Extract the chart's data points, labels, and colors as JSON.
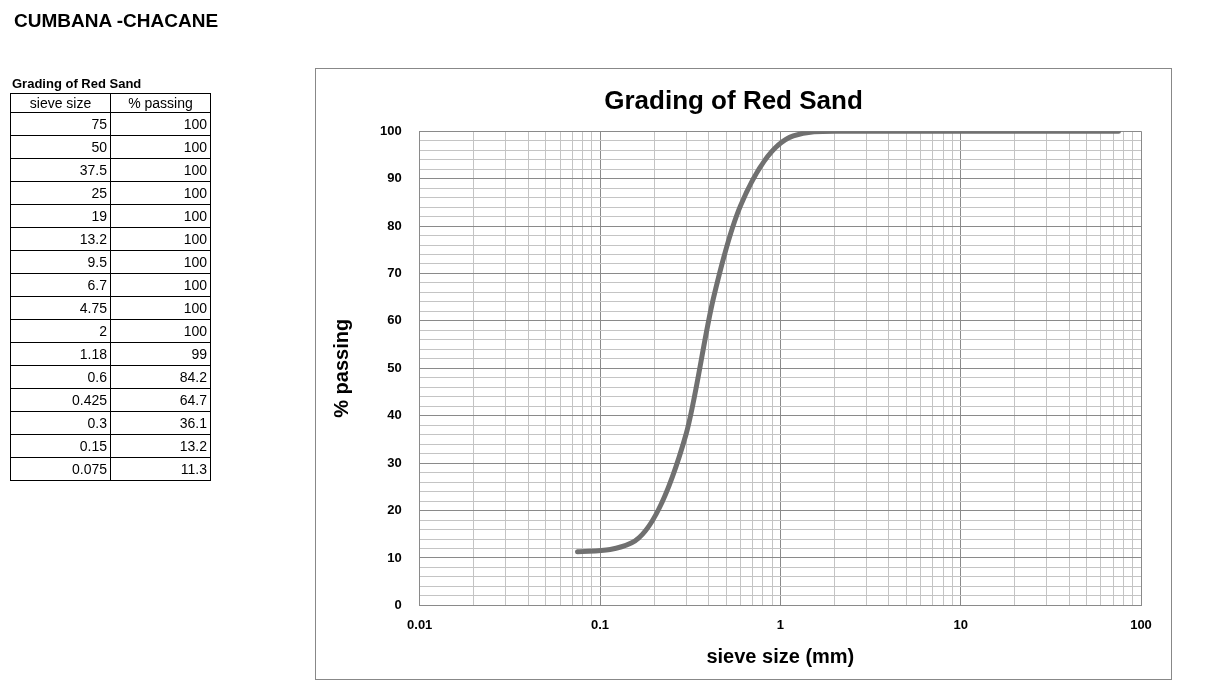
{
  "chart_data": {
    "type": "line",
    "title": "Grading of Red Sand",
    "xlabel": "sieve size (mm)",
    "ylabel": "% passing",
    "annotations": [
      "CUMBANA -CHACANE",
      "Grading of Red Sand",
      "sieve size",
      "% passing",
      "75",
      "100",
      "50",
      "100",
      "37.5",
      "100",
      "25",
      "100",
      "19",
      "100",
      "13.2",
      "100",
      "9.5",
      "100",
      "6.7",
      "100",
      "4.75",
      "100",
      "2",
      "100",
      "1.18",
      "99",
      "0.6",
      "84.2",
      "0.425",
      "64.7",
      "0.3",
      "36.1",
      "0.15",
      "13.2",
      "0.075",
      "11.3"
    ],
    "x": [
      75,
      50,
      37.5,
      25,
      19,
      13.2,
      9.5,
      6.7,
      4.75,
      2,
      1.18,
      0.6,
      0.425,
      0.3,
      0.15,
      0.075
    ],
    "series": [
      {
        "color": "#707070",
        "values": [
          100,
          100,
          100,
          100,
          100,
          100,
          100,
          100,
          100,
          100,
          99,
          84.2,
          64.7,
          36.1,
          13.2,
          11.3
        ]
      }
    ],
    "log": "x",
    "grid": true,
    "legend": false,
    "marker": "none",
    "line_style": "solid",
    "xlim": [
      0.01,
      100
    ],
    "xticks": [
      0.01,
      {
        "value": 0.02,
        "label": null
      },
      {
        "value": 0.03,
        "label": null
      },
      {
        "value": 0.04,
        "label": null
      },
      {
        "value": 0.05,
        "label": null
      },
      {
        "value": 0.06,
        "label": null
      },
      {
        "value": 0.07,
        "label": null
      },
      {
        "value": 0.08,
        "label": null
      },
      {
        "value": 0.09,
        "label": null
      },
      0.1,
      {
        "value": 0.2,
        "label": null
      },
      {
        "value": 0.3,
        "label": null
      },
      {
        "value": 0.4,
        "label": null
      },
      {
        "value": 0.5,
        "label": null
      },
      {
        "value": 0.6,
        "label": null
      },
      {
        "value": 0.7,
        "label": null
      },
      {
        "value": 0.8,
        "label": null
      },
      {
        "value": 0.9,
        "label": null
      },
      1,
      {
        "value": 2,
        "label": null
      },
      {
        "value": 3,
        "label": null
      },
      {
        "value": 4,
        "label": null
      },
      {
        "value": 5,
        "label": null
      },
      {
        "value": 6,
        "label": null
      },
      {
        "value": 7,
        "label": null
      },
      {
        "value": 8,
        "label": null
      },
      {
        "value": 9,
        "label": null
      },
      10,
      {
        "value": 20,
        "label": null
      },
      {
        "value": 30,
        "label": null
      },
      {
        "value": 40,
        "label": null
      },
      {
        "value": 50,
        "label": null
      },
      {
        "value": 60,
        "label": null
      },
      {
        "value": 70,
        "label": null
      },
      {
        "value": 80,
        "label": null
      },
      {
        "value": 90,
        "label": null
      },
      100
    ],
    "ylim": [
      0,
      100
    ],
    "yticks": [
      0,
      {
        "value": 2,
        "label": null
      },
      {
        "value": 4,
        "label": null
      },
      {
        "value": 6,
        "label": null
      },
      {
        "value": 8,
        "label": null
      },
      10,
      {
        "value": 12,
        "label": null
      },
      {
        "value": 14,
        "label": null
      },
      {
        "value": 16,
        "label": null
      },
      {
        "value": 18,
        "label": null
      },
      20,
      {
        "value": 22,
        "label": null
      },
      {
        "value": 24,
        "label": null
      },
      {
        "value": 26,
        "label": null
      },
      {
        "value": 28,
        "label": null
      },
      30,
      {
        "value": 32,
        "label": null
      },
      {
        "value": 34,
        "label": null
      },
      {
        "value": 36,
        "label": null
      },
      {
        "value": 38,
        "label": null
      },
      40,
      {
        "value": 42,
        "label": null
      },
      {
        "value": 44,
        "label": null
      },
      {
        "value": 46,
        "label": null
      },
      {
        "value": 48,
        "label": null
      },
      50,
      {
        "value": 52,
        "label": null
      },
      {
        "value": 54,
        "label": null
      },
      {
        "value": 56,
        "label": null
      },
      {
        "value": 58,
        "label": null
      },
      60,
      {
        "value": 62,
        "label": null
      },
      {
        "value": 64,
        "label": null
      },
      {
        "value": 66,
        "label": null
      },
      {
        "value": 68,
        "label": null
      },
      70,
      {
        "value": 72,
        "label": null
      },
      {
        "value": 74,
        "label": null
      },
      {
        "value": 76,
        "label": null
      },
      {
        "value": 78,
        "label": null
      },
      80,
      {
        "value": 82,
        "label": null
      },
      {
        "value": 84,
        "label": null
      },
      {
        "value": 86,
        "label": null
      },
      {
        "value": 88,
        "label": null
      },
      90,
      {
        "value": 92,
        "label": null
      },
      {
        "value": 94,
        "label": null
      },
      {
        "value": 96,
        "label": null
      },
      {
        "value": 98,
        "label": null
      },
      100
    ]
  }
}
